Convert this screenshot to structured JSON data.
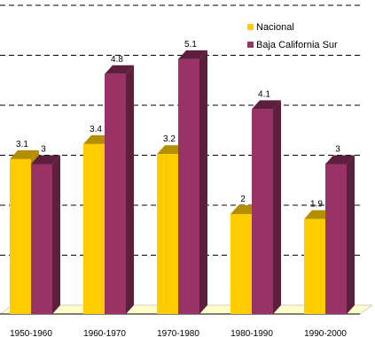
{
  "chart_data": {
    "type": "bar",
    "title": "",
    "xlabel": "",
    "ylabel": "",
    "categories": [
      "1950-1960",
      "1960-1970",
      "1970-1980",
      "1980-1990",
      "1990-2000"
    ],
    "series": [
      {
        "name": "Nacional",
        "values": [
          3.1,
          3.4,
          3.2,
          2,
          1.9
        ],
        "labels": [
          "3.1",
          "3.4",
          "3.2",
          "2",
          "1.9"
        ],
        "color": "#FFCC00",
        "side_color": "#B38F00"
      },
      {
        "name": "Baja California Sur",
        "values": [
          3,
          4.8,
          5.1,
          4.1,
          3
        ],
        "labels": [
          "3",
          "4.8",
          "5.1",
          "4.1",
          "3"
        ],
        "color": "#993366",
        "side_color": "#5C1F3D"
      }
    ],
    "ylim": [
      0,
      6
    ],
    "grid": true,
    "grid_style": "dashed",
    "legend_position": "top-right",
    "floor_color": "#FFFFCC",
    "three_d": true
  }
}
